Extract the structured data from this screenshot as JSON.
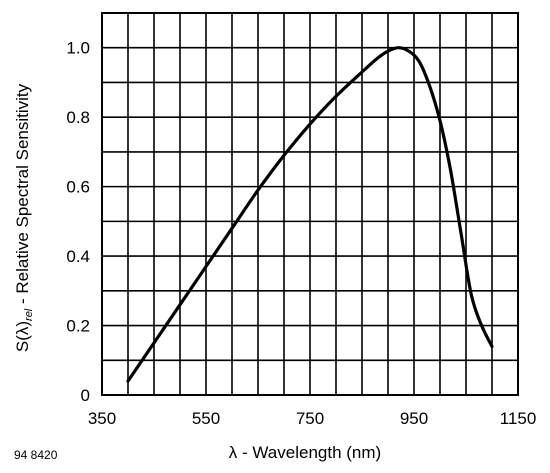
{
  "figure_code": "94 8420",
  "chart_data": {
    "type": "line",
    "xlabel": "λ - Wavelength (nm)",
    "ylabel": {
      "prefix": "S(λ)",
      "subscript": "rel",
      "suffix": " - Relative Spectral Sensitivity"
    },
    "xlim": [
      350,
      1150
    ],
    "ylim": [
      0,
      1.1
    ],
    "x_ticks": [
      350,
      550,
      750,
      950,
      1150
    ],
    "x_tick_labels": [
      "350",
      "550",
      "750",
      "950",
      "1150"
    ],
    "y_ticks": [
      0,
      0.2,
      0.4,
      0.6,
      0.8,
      1.0
    ],
    "y_tick_labels": [
      "0",
      "0.2",
      "0.4",
      "0.6",
      "0.8",
      "1.0"
    ],
    "x_grid": [
      400,
      450,
      500,
      550,
      600,
      650,
      700,
      750,
      800,
      850,
      900,
      950,
      1000,
      1050,
      1100
    ],
    "y_grid": [
      0.1,
      0.2,
      0.3,
      0.4,
      0.5,
      0.6,
      0.7,
      0.8,
      0.9,
      1.0
    ],
    "grid": true,
    "series": [
      {
        "x": [
          400,
          450,
          500,
          550,
          600,
          650,
          700,
          750,
          800,
          850,
          880,
          900,
          920,
          940,
          960,
          980,
          1000,
          1020,
          1040,
          1060,
          1080,
          1100
        ],
        "y": [
          0.04,
          0.15,
          0.26,
          0.37,
          0.48,
          0.59,
          0.69,
          0.78,
          0.86,
          0.93,
          0.97,
          0.99,
          1.0,
          0.99,
          0.96,
          0.89,
          0.79,
          0.65,
          0.47,
          0.29,
          0.2,
          0.14
        ]
      }
    ]
  }
}
